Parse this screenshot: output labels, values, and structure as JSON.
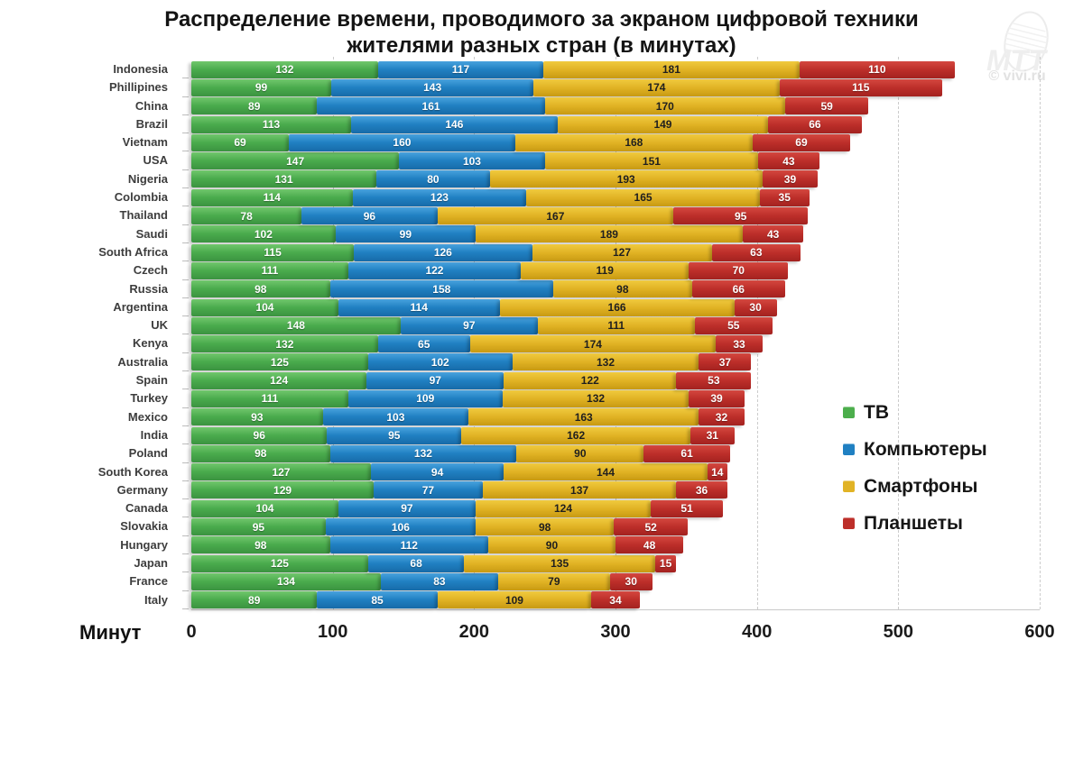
{
  "title": {
    "line1": "Распределение времени, проводимого за экраном цифровой техники",
    "line2": "жителями разных стран (в минутах)"
  },
  "watermark": {
    "logo": "МТТ",
    "credit": "© vivi.ru"
  },
  "axis": {
    "label": "Минут",
    "ticks": [
      "0",
      "100",
      "200",
      "300",
      "400",
      "500",
      "600"
    ]
  },
  "chart_data": {
    "type": "bar",
    "stacked": true,
    "orientation": "horizontal",
    "title": "Распределение времени, проводимого за экраном цифровой техники жителями разных стран (в минутах)",
    "xlabel": "Минут",
    "xlim": [
      0,
      600
    ],
    "grid": "vertical-dashed",
    "legend_position": "right",
    "categories": [
      "Indonesia",
      "Phillipines",
      "China",
      "Brazil",
      "Vietnam",
      "USA",
      "Nigeria",
      "Colombia",
      "Thailand",
      "Saudi",
      "South Africa",
      "Czech",
      "Russia",
      "Argentina",
      "UK",
      "Kenya",
      "Australia",
      "Spain",
      "Turkey",
      "Mexico",
      "India",
      "Poland",
      "South Korea",
      "Germany",
      "Canada",
      "Slovakia",
      "Hungary",
      "Japan",
      "France",
      "Italy"
    ],
    "series": [
      {
        "name": "ТВ",
        "key": "tv",
        "color": "#4cae4c",
        "label_color": "#ffffff",
        "values": [
          132,
          99,
          89,
          113,
          69,
          147,
          131,
          114,
          78,
          102,
          115,
          111,
          98,
          104,
          148,
          132,
          125,
          124,
          111,
          93,
          96,
          98,
          127,
          129,
          104,
          95,
          98,
          125,
          134,
          89
        ]
      },
      {
        "name": "Компьютеры",
        "key": "computers",
        "color": "#2080c2",
        "label_color": "#ffffff",
        "values": [
          117,
          143,
          161,
          146,
          160,
          103,
          80,
          123,
          96,
          99,
          126,
          122,
          158,
          114,
          97,
          65,
          102,
          97,
          109,
          103,
          95,
          132,
          94,
          77,
          97,
          106,
          112,
          68,
          83,
          85
        ]
      },
      {
        "name": "Смартфоны",
        "key": "smartphones",
        "color": "#e1b325",
        "label_color": "#1f1f1f",
        "values": [
          181,
          174,
          170,
          149,
          168,
          151,
          193,
          165,
          167,
          189,
          127,
          119,
          98,
          166,
          111,
          174,
          132,
          122,
          132,
          163,
          162,
          90,
          144,
          137,
          124,
          98,
          90,
          135,
          79,
          109
        ]
      },
      {
        "name": "Планшеты",
        "key": "tablets",
        "color": "#bd2f2a",
        "label_color": "#ffffff",
        "values": [
          110,
          115,
          59,
          66,
          69,
          43,
          39,
          35,
          95,
          43,
          63,
          70,
          66,
          30,
          55,
          33,
          37,
          53,
          39,
          32,
          31,
          61,
          14,
          36,
          51,
          52,
          48,
          15,
          30,
          34
        ]
      }
    ]
  }
}
